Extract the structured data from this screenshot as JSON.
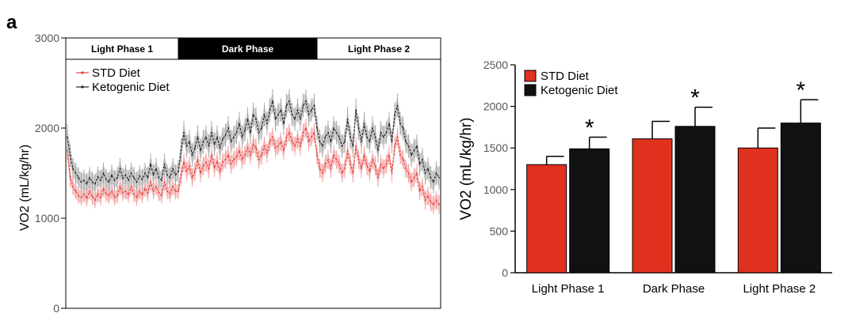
{
  "figure": {
    "panel_label": "a"
  },
  "chart_data": [
    {
      "type": "line",
      "ylabel": "VO2 (mL/kg/hr)",
      "xlabel": "",
      "ylim": [
        0,
        3000
      ],
      "yticks": [
        0,
        1000,
        2000,
        3000
      ],
      "grid": false,
      "phases": [
        {
          "label": "Light Phase 1",
          "start": 0,
          "end": 40,
          "dark": false
        },
        {
          "label": "Dark Phase",
          "start": 40,
          "end": 90,
          "dark": true
        },
        {
          "label": "Light Phase 2",
          "start": 90,
          "end": 135,
          "dark": false
        }
      ],
      "legend": {
        "position": "top-left"
      },
      "series": [
        {
          "name": "STD Diet",
          "color": "#e0403a",
          "band_color": "#f4a0a0",
          "values": [
            1750,
            1450,
            1350,
            1300,
            1250,
            1230,
            1270,
            1220,
            1300,
            1240,
            1200,
            1270,
            1230,
            1330,
            1270,
            1250,
            1300,
            1230,
            1250,
            1350,
            1280,
            1300,
            1260,
            1350,
            1270,
            1230,
            1300,
            1260,
            1330,
            1280,
            1400,
            1300,
            1350,
            1280,
            1250,
            1400,
            1300,
            1270,
            1350,
            1300,
            1300,
            1480,
            1620,
            1520,
            1580,
            1450,
            1520,
            1650,
            1500,
            1580,
            1620,
            1550,
            1700,
            1560,
            1630,
            1520,
            1620,
            1650,
            1700,
            1600,
            1650,
            1680,
            1750,
            1650,
            1700,
            1780,
            1700,
            1820,
            1780,
            1650,
            1700,
            1800,
            1720,
            1850,
            1900,
            1780,
            1800,
            1850,
            1750,
            1900,
            1950,
            1850,
            1800,
            1880,
            1800,
            1950,
            2000,
            1850,
            1900,
            1950,
            1700,
            1550,
            1500,
            1600,
            1650,
            1550,
            1700,
            1650,
            1600,
            1500,
            1550,
            1750,
            1600,
            1500,
            1800,
            1650,
            1550,
            1700,
            1580,
            1520,
            1650,
            1580,
            1450,
            1600,
            1550,
            1600,
            1700,
            1500,
            1800,
            1900,
            1700,
            1650,
            1550,
            1500,
            1400,
            1450,
            1500,
            1300,
            1350,
            1200,
            1250,
            1180,
            1150,
            1200,
            1150
          ],
          "errors": [
            90,
            80,
            70,
            70,
            70,
            70,
            70,
            70,
            70,
            70,
            70,
            70,
            70,
            70,
            70,
            70,
            70,
            70,
            70,
            70,
            70,
            70,
            70,
            70,
            70,
            70,
            70,
            70,
            70,
            70,
            70,
            70,
            70,
            70,
            70,
            70,
            70,
            70,
            70,
            70,
            70,
            80,
            80,
            80,
            80,
            80,
            80,
            80,
            80,
            80,
            80,
            80,
            80,
            80,
            80,
            80,
            80,
            80,
            80,
            80,
            80,
            80,
            80,
            80,
            80,
            80,
            80,
            80,
            80,
            80,
            80,
            80,
            80,
            80,
            80,
            80,
            80,
            80,
            80,
            80,
            80,
            80,
            80,
            80,
            80,
            80,
            80,
            80,
            80,
            80,
            80,
            80,
            80,
            80,
            80,
            80,
            80,
            80,
            80,
            80,
            80,
            80,
            80,
            80,
            80,
            80,
            80,
            80,
            80,
            80,
            80,
            80,
            80,
            80,
            80,
            80,
            80,
            80,
            80,
            80,
            80,
            80,
            80,
            80,
            80,
            80,
            80,
            80,
            80,
            80,
            80,
            80,
            80,
            80,
            80
          ]
        },
        {
          "name": "Ketogenic Diet",
          "color": "#222222",
          "band_color": "#a8a8a8",
          "values": [
            1900,
            1700,
            1550,
            1500,
            1450,
            1400,
            1420,
            1380,
            1450,
            1400,
            1380,
            1460,
            1420,
            1500,
            1430,
            1400,
            1480,
            1420,
            1450,
            1550,
            1440,
            1480,
            1420,
            1500,
            1450,
            1400,
            1470,
            1430,
            1500,
            1450,
            1600,
            1480,
            1550,
            1450,
            1420,
            1600,
            1480,
            1450,
            1550,
            1480,
            1520,
            1750,
            1950,
            1800,
            1850,
            1700,
            1780,
            1900,
            1750,
            1850,
            1900,
            1800,
            1950,
            1820,
            1900,
            1780,
            1880,
            1920,
            2000,
            1850,
            1900,
            1950,
            2050,
            1900,
            1980,
            2100,
            1950,
            2150,
            2100,
            1950,
            2000,
            2150,
            2050,
            2200,
            2300,
            2100,
            2150,
            2200,
            2050,
            2250,
            2300,
            2150,
            2100,
            2200,
            2100,
            2250,
            2300,
            2150,
            2200,
            2250,
            2000,
            1850,
            1800,
            1900,
            1950,
            1850,
            2000,
            1950,
            1900,
            1800,
            1850,
            2100,
            1900,
            1800,
            2200,
            2000,
            1850,
            2050,
            1900,
            1850,
            2000,
            1900,
            1750,
            1950,
            1900,
            1950,
            2050,
            1850,
            2150,
            2250,
            2050,
            2000,
            1850,
            1800,
            1700,
            1750,
            1800,
            1600,
            1650,
            1500,
            1550,
            1450,
            1400,
            1500,
            1450
          ],
          "errors": [
            110,
            100,
            90,
            90,
            90,
            90,
            90,
            90,
            90,
            90,
            90,
            90,
            90,
            90,
            90,
            90,
            90,
            90,
            90,
            90,
            90,
            90,
            90,
            90,
            90,
            90,
            90,
            90,
            90,
            90,
            90,
            90,
            90,
            90,
            90,
            90,
            90,
            90,
            90,
            90,
            90,
            100,
            100,
            100,
            100,
            100,
            100,
            100,
            100,
            100,
            100,
            100,
            100,
            100,
            100,
            100,
            100,
            100,
            100,
            100,
            100,
            100,
            100,
            100,
            100,
            100,
            100,
            100,
            100,
            100,
            100,
            100,
            100,
            100,
            100,
            100,
            100,
            100,
            100,
            100,
            100,
            100,
            100,
            100,
            100,
            100,
            100,
            100,
            100,
            100,
            100,
            100,
            100,
            100,
            100,
            100,
            100,
            100,
            100,
            100,
            100,
            100,
            100,
            100,
            100,
            100,
            100,
            100,
            100,
            100,
            100,
            100,
            100,
            100,
            100,
            100,
            100,
            100,
            100,
            100,
            100,
            100,
            100,
            100,
            100,
            100,
            100,
            100,
            100,
            100,
            100,
            100,
            100,
            100,
            100
          ]
        }
      ]
    },
    {
      "type": "bar",
      "ylabel": "VO2 (mL/kg/hr)",
      "xlabel": "",
      "ylim": [
        0,
        2500
      ],
      "yticks": [
        0,
        500,
        1000,
        1500,
        2000,
        2500
      ],
      "grid": false,
      "legend": {
        "position": "top-left"
      },
      "categories": [
        "Light Phase 1",
        "Dark Phase",
        "Light Phase 2"
      ],
      "series": [
        {
          "name": "STD Diet",
          "color": "#e0301e",
          "values": [
            1300,
            1610,
            1500
          ],
          "errors": [
            100,
            210,
            240
          ]
        },
        {
          "name": "Ketogenic Diet",
          "color": "#111111",
          "values": [
            1490,
            1760,
            1800
          ],
          "errors": [
            140,
            230,
            280
          ]
        }
      ],
      "significance": [
        {
          "category": "Light Phase 1",
          "series": "Ketogenic Diet",
          "mark": "*"
        },
        {
          "category": "Dark Phase",
          "series": "Ketogenic Diet",
          "mark": "*"
        },
        {
          "category": "Light Phase 2",
          "series": "Ketogenic Diet",
          "mark": "*"
        }
      ]
    }
  ]
}
